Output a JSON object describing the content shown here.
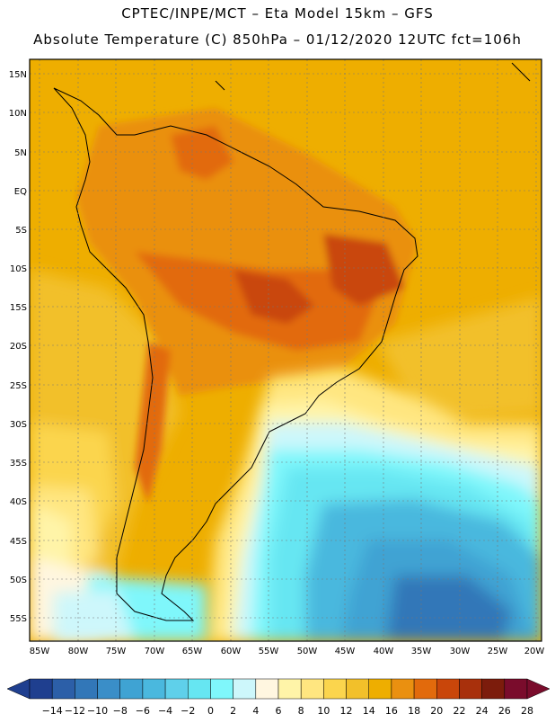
{
  "header": {
    "line1": "CPTEC/INPE/MCT –  Eta Model 15km – GFS",
    "line2": "Absolute Temperature (C) 850hPa – 01/12/2020 12UTC fct=106h"
  },
  "axes": {
    "lat_labels": [
      "15N",
      "10N",
      "5N",
      "EQ",
      "5S",
      "10S",
      "15S",
      "20S",
      "25S",
      "30S",
      "35S",
      "40S",
      "45S",
      "50S",
      "55S"
    ],
    "lon_labels": [
      "85W",
      "80W",
      "75W",
      "70W",
      "65W",
      "60W",
      "55W",
      "50W",
      "45W",
      "40W",
      "35W",
      "30W",
      "25W",
      "20W"
    ]
  },
  "legend": {
    "labels": [
      "-14",
      "-12",
      "-10",
      "-8",
      "-6",
      "-4",
      "-2",
      "0",
      "2",
      "4",
      "6",
      "8",
      "10",
      "12",
      "14",
      "16",
      "18",
      "20",
      "22",
      "24",
      "26",
      "28"
    ],
    "colors": [
      "#1f3f8f",
      "#2c5fa8",
      "#3277b8",
      "#3a8ec8",
      "#3fa3d3",
      "#4ab8de",
      "#5fd0ea",
      "#66e6f2",
      "#7ff7fb",
      "#cdf7fb",
      "#fff6e0",
      "#fff4a8",
      "#ffe680",
      "#fbd54d",
      "#f2c02a",
      "#eeae00",
      "#ea9010",
      "#e26a0c",
      "#c9460a",
      "#a8300c",
      "#7c1c0c",
      "#7a0c2c"
    ]
  }
}
